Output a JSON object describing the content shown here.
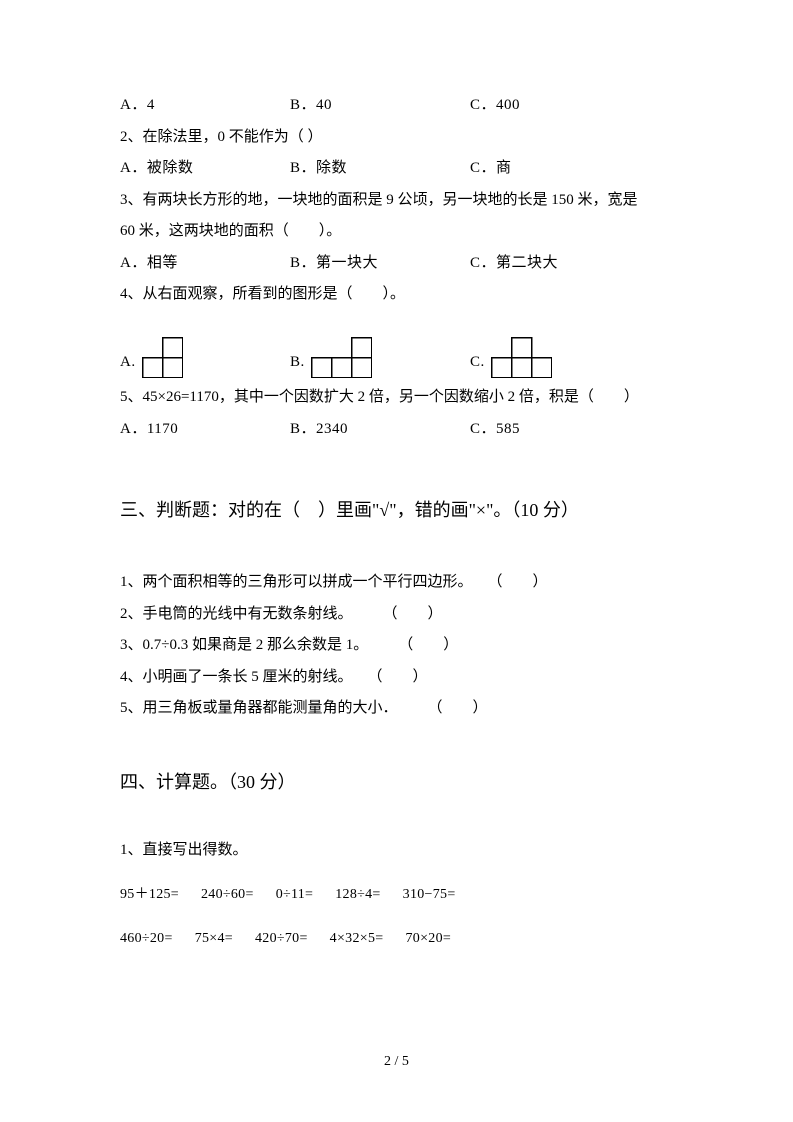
{
  "q1": {
    "optA": "A．4",
    "optB": "B．40",
    "optC": "C．400"
  },
  "q2": {
    "stem": "2、在除法里，0 不能作为（ ）",
    "optA": "A．被除数",
    "optB": "B．除数",
    "optC": "C．商"
  },
  "q3": {
    "line1": "3、有两块长方形的地，一块地的面积是 9 公顷，另一块地的长是 150 米，宽是",
    "line2": "60 米，这两块地的面积（　　）。",
    "optA": "A．相等",
    "optB": "B．第一块大",
    "optC": "C．第二块大"
  },
  "q4": {
    "stem": "4、从右面观察，所看到的图形是（　　）。",
    "labelA": "A.",
    "labelB": "B.",
    "labelC": "C.",
    "shapes": {
      "cell": 20,
      "stroke": "#000000",
      "strokeWidth": 1.5,
      "fill": "#ffffff"
    }
  },
  "q5": {
    "stem": "5、45×26=1170，其中一个因数扩大 2 倍，另一个因数缩小 2 倍，积是（　　）",
    "optA": "A．1170",
    "optB": "B．2340",
    "optC": "C．585"
  },
  "section3": {
    "title": "三、判断题：对的在（　）里画\"√\"，错的画\"×\"。（10 分）",
    "items": [
      "1、两个面积相等的三角形可以拼成一个平行四边形。　　（　　）",
      "2、手电筒的光线中有无数条射线。　　　（　　）",
      "3、0.7÷0.3 如果商是 2 那么余数是 1。　　　（　　）",
      "4、小明画了一条长 5 厘米的射线。　　（　　）",
      "5、用三角板或量角器都能测量角的大小．　　　（　　）"
    ]
  },
  "section4": {
    "title": "四、计算题。（30 分）",
    "sub1": "1、直接写出得数。",
    "row1": [
      "95＋125=",
      "240÷60=",
      "0÷11=",
      "128÷4=",
      "310−75="
    ],
    "row2": [
      "460÷20=",
      "75×4=",
      "420÷70=",
      "4×32×5=",
      "70×20="
    ]
  },
  "footer": "2 / 5"
}
